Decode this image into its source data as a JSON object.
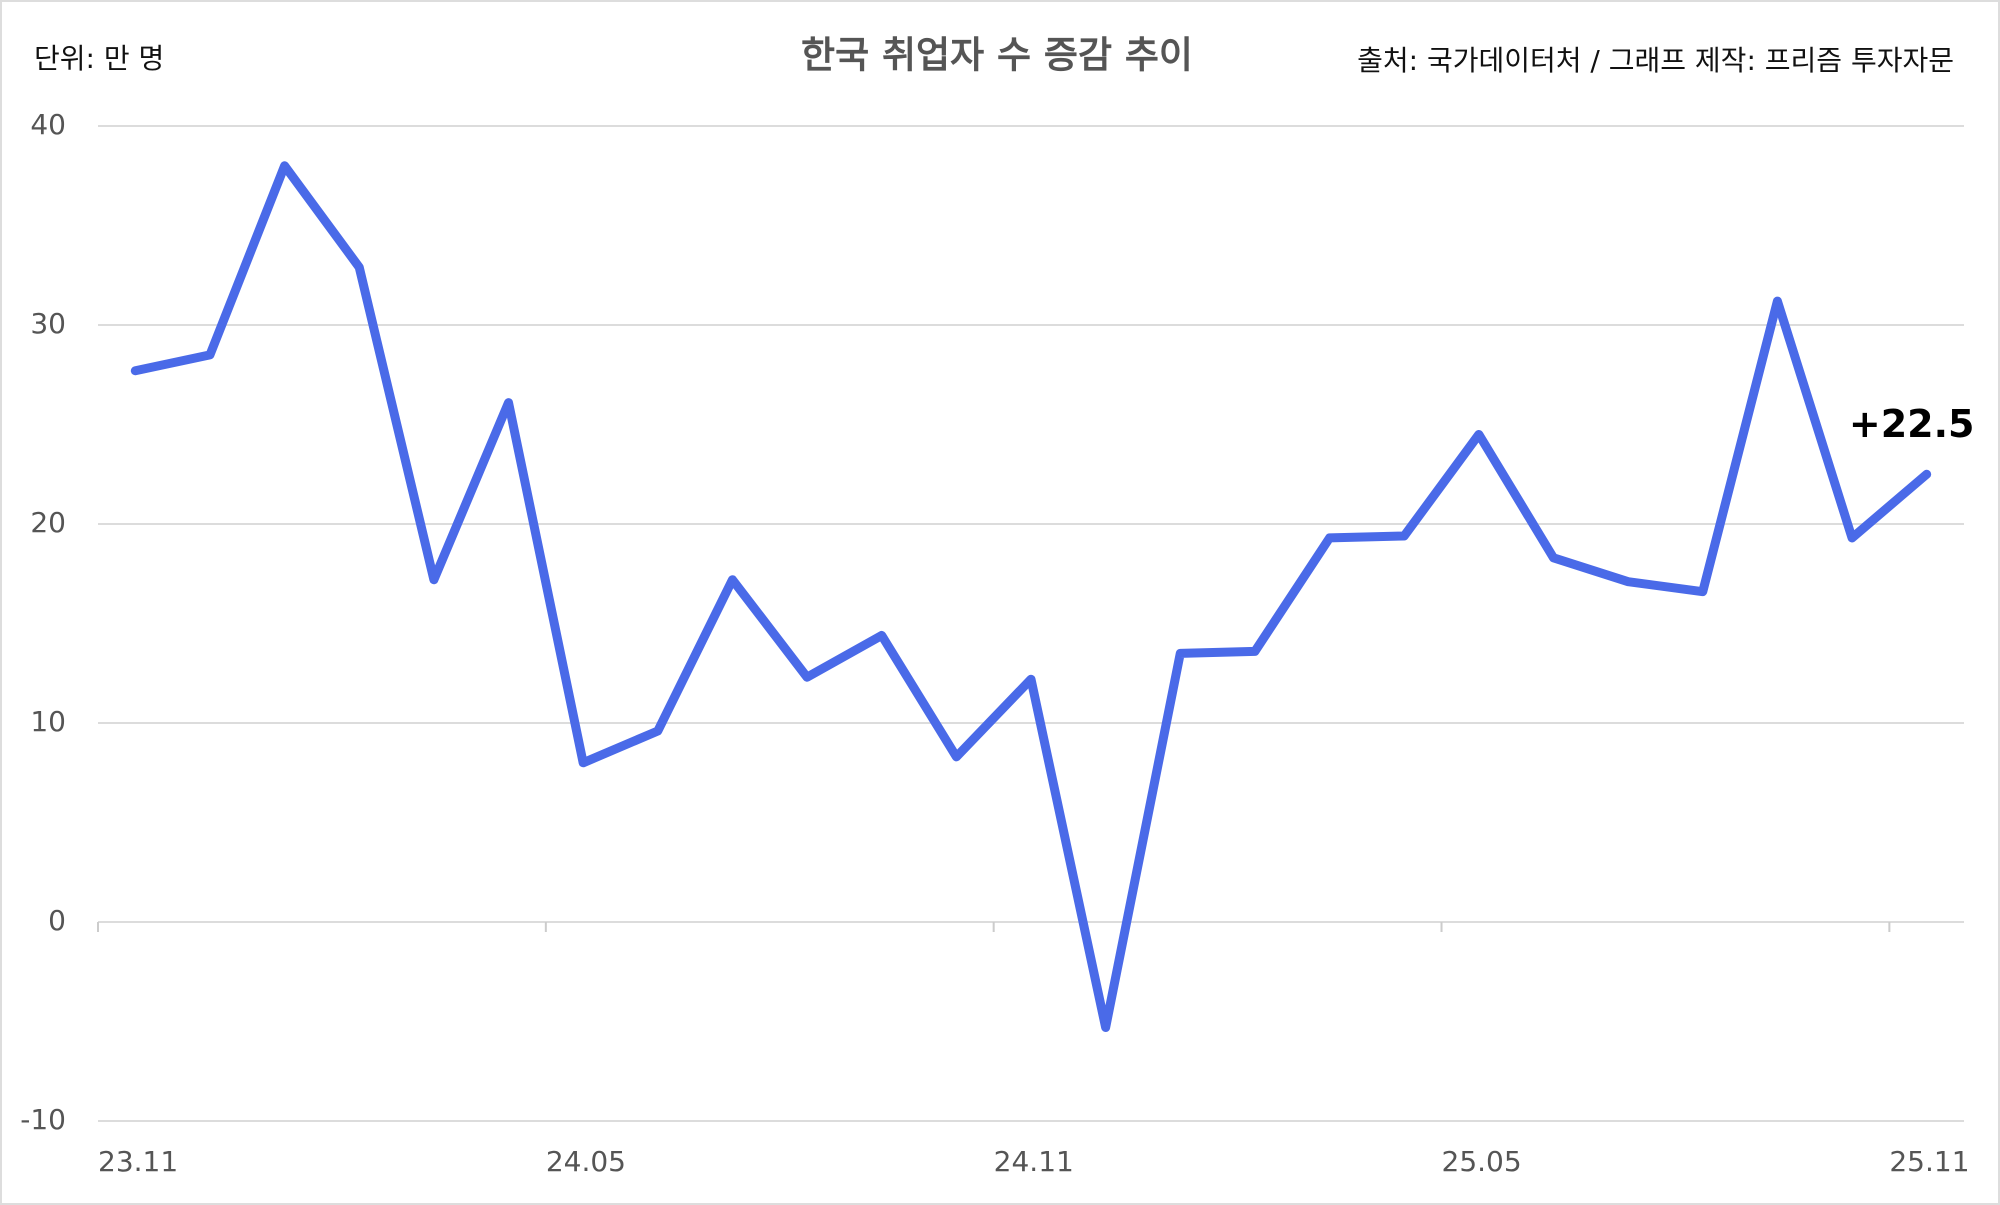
{
  "chart_data": {
    "type": "line",
    "title": "한국 취업자 수 증감 추이",
    "unit_label": "단위: 만 명",
    "source": "출처: 국가데이터처 / 그래프 제작: 프리즘 투자자문",
    "categories": [
      "23.11",
      null,
      null,
      null,
      null,
      null,
      "24.05",
      null,
      null,
      null,
      null,
      null,
      "24.11",
      null,
      null,
      null,
      null,
      null,
      "25.05",
      null,
      null,
      null,
      null,
      null,
      "25.11"
    ],
    "series": [
      {
        "name": "취업자 수 증감",
        "color": "#4a6ae8",
        "values": [
          27.7,
          28.5,
          38.0,
          32.9,
          17.2,
          26.1,
          8.0,
          9.6,
          17.2,
          12.3,
          14.4,
          8.3,
          12.2,
          -5.3,
          13.5,
          13.6,
          19.3,
          19.4,
          24.5,
          18.3,
          17.1,
          16.6,
          31.2,
          19.3,
          22.5
        ],
        "value_labels": [
          null,
          null,
          null,
          null,
          null,
          null,
          null,
          null,
          null,
          null,
          null,
          null,
          null,
          null,
          null,
          null,
          null,
          null,
          null,
          null,
          null,
          null,
          null,
          null,
          "+22.5"
        ]
      }
    ],
    "ylim": [
      -10,
      40
    ],
    "yticks": [
      -10,
      0,
      10,
      20,
      30,
      40
    ],
    "grid": true
  }
}
